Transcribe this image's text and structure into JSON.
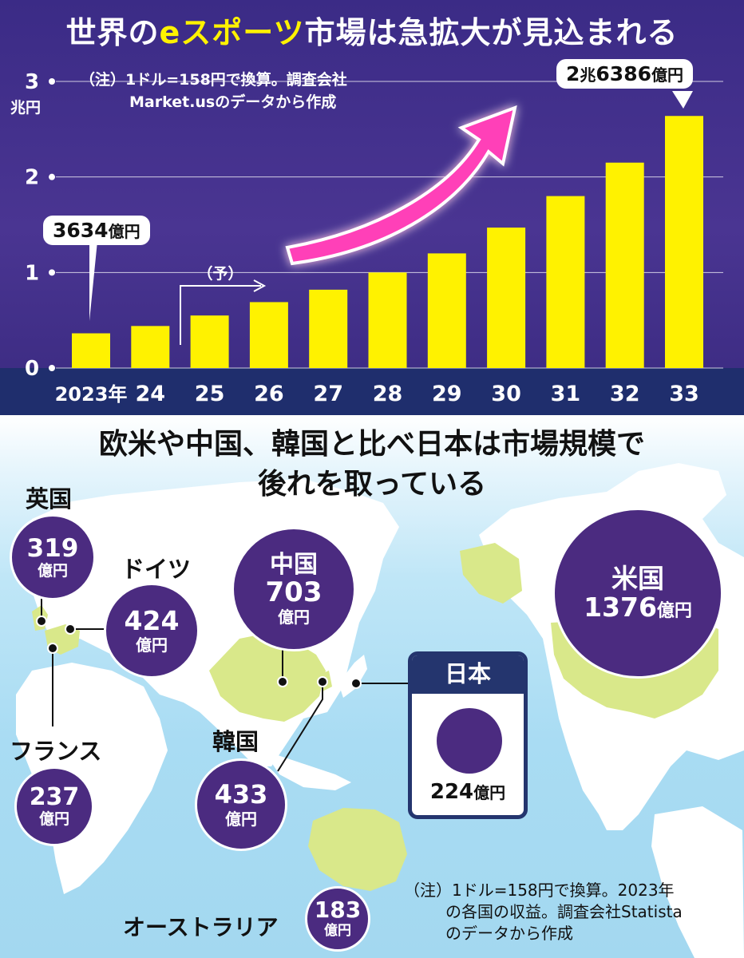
{
  "chart_data": [
    {
      "type": "bar",
      "title": "世界のeスポーツ市場は急拡大が見込まれる",
      "title_parts": [
        "世界の",
        "eスポーツ",
        "市場は急拡大が見込まれる"
      ],
      "note": [
        "（注）1ドル=158円で換算。調査会社",
        "Market.usのデータから作成"
      ],
      "ylabel": "兆円",
      "ylim": [
        0,
        3
      ],
      "yticks": [
        "0",
        "1",
        "2",
        "3"
      ],
      "categories": [
        "2023年",
        "24",
        "25",
        "26",
        "27",
        "28",
        "29",
        "30",
        "31",
        "32",
        "33"
      ],
      "values": [
        0.3634,
        0.44,
        0.55,
        0.69,
        0.82,
        1.0,
        1.2,
        1.47,
        1.8,
        2.15,
        2.6386
      ],
      "forecast_label": "（予）",
      "forecast_start_category": "25",
      "data_labels": [
        {
          "category": "2023年",
          "main": "3634",
          "unit": "億円"
        },
        {
          "category": "33",
          "main": "2",
          "mid": "兆",
          "main2": "6386",
          "unit": "億円"
        }
      ],
      "grid": true,
      "colors": {
        "bar": "#fff200",
        "background": "#3f2f8a",
        "arrow": "#ff2fb0",
        "band": "#1f2e6d"
      }
    },
    {
      "type": "bubble-map",
      "title": [
        "欧米や中国、韓国と比べ日本は市場規模で",
        "後れを取っている"
      ],
      "unit": "億円",
      "countries": [
        {
          "name": "英国",
          "value": 319
        },
        {
          "name": "ドイツ",
          "value": 424
        },
        {
          "name": "中国",
          "value": 703
        },
        {
          "name": "米国",
          "value": 1376
        },
        {
          "name": "フランス",
          "value": 237
        },
        {
          "name": "韓国",
          "value": 433
        },
        {
          "name": "日本",
          "value": 224
        },
        {
          "name": "オーストラリア",
          "value": 183
        }
      ],
      "note": [
        "（注）1ドル=158円で換算。2023年",
        "の各国の収益。調査会社Statista",
        "のデータから作成"
      ],
      "colors": {
        "bubble": "#4b2b80",
        "land": "#ffffff",
        "highlight": "#d9e88a",
        "sea": "#a9dcf3"
      }
    }
  ]
}
